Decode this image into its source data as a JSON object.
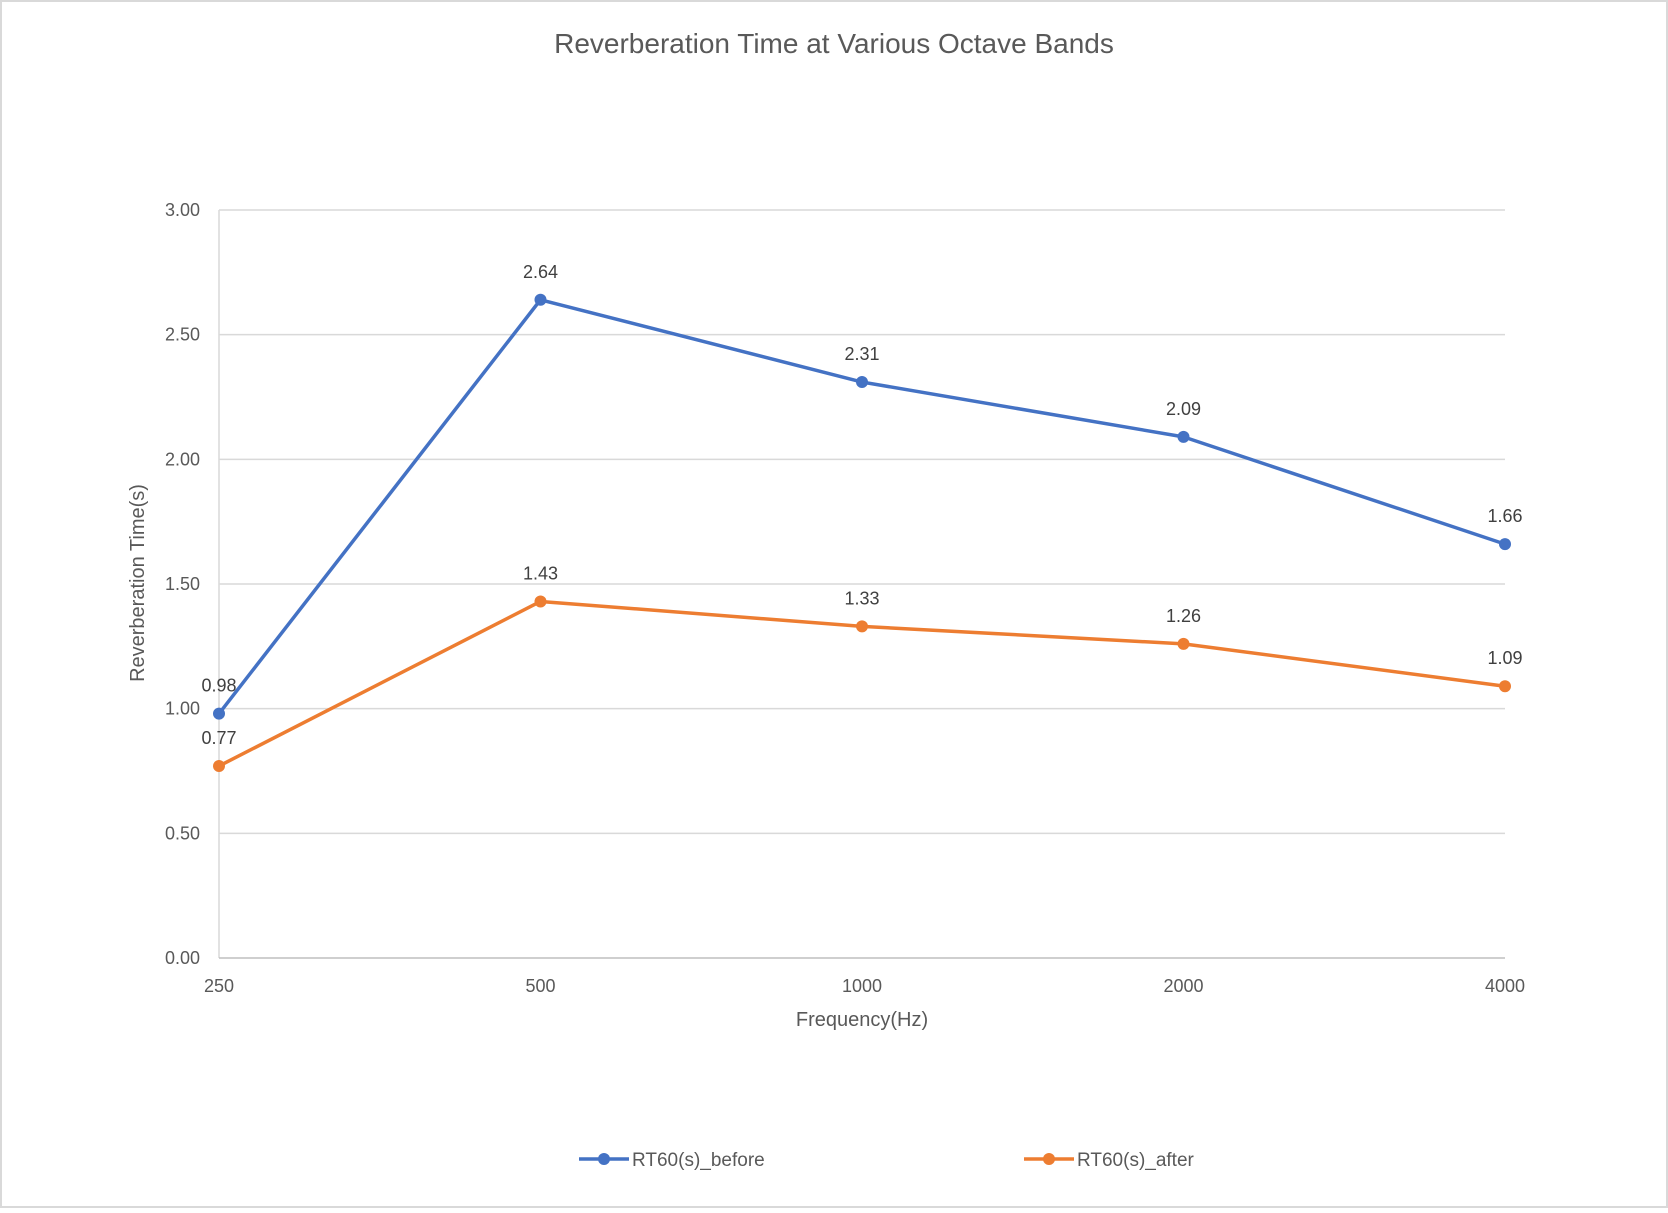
{
  "chart_data": {
    "type": "line",
    "title": "Reverberation Time at Various Octave Bands",
    "xlabel": "Frequency(Hz)",
    "ylabel": "Reverberation Time(s)",
    "categories": [
      "250",
      "500",
      "1000",
      "2000",
      "4000"
    ],
    "ylim": [
      0,
      3
    ],
    "yticks": [
      "0.00",
      "0.50",
      "1.00",
      "1.50",
      "2.00",
      "2.50",
      "3.00"
    ],
    "grid": true,
    "legend_position": "bottom",
    "series": [
      {
        "name": "RT60(s)_before",
        "color": "#4472C4",
        "values": [
          0.98,
          2.64,
          2.31,
          2.09,
          1.66
        ],
        "labels": [
          "0.98",
          "2.64",
          "2.31",
          "2.09",
          "1.66"
        ]
      },
      {
        "name": "RT60(s)_after",
        "color": "#ED7D31",
        "values": [
          0.77,
          1.43,
          1.33,
          1.26,
          1.09
        ],
        "labels": [
          "0.77",
          "1.43",
          "1.33",
          "1.26",
          "1.09"
        ]
      }
    ]
  }
}
